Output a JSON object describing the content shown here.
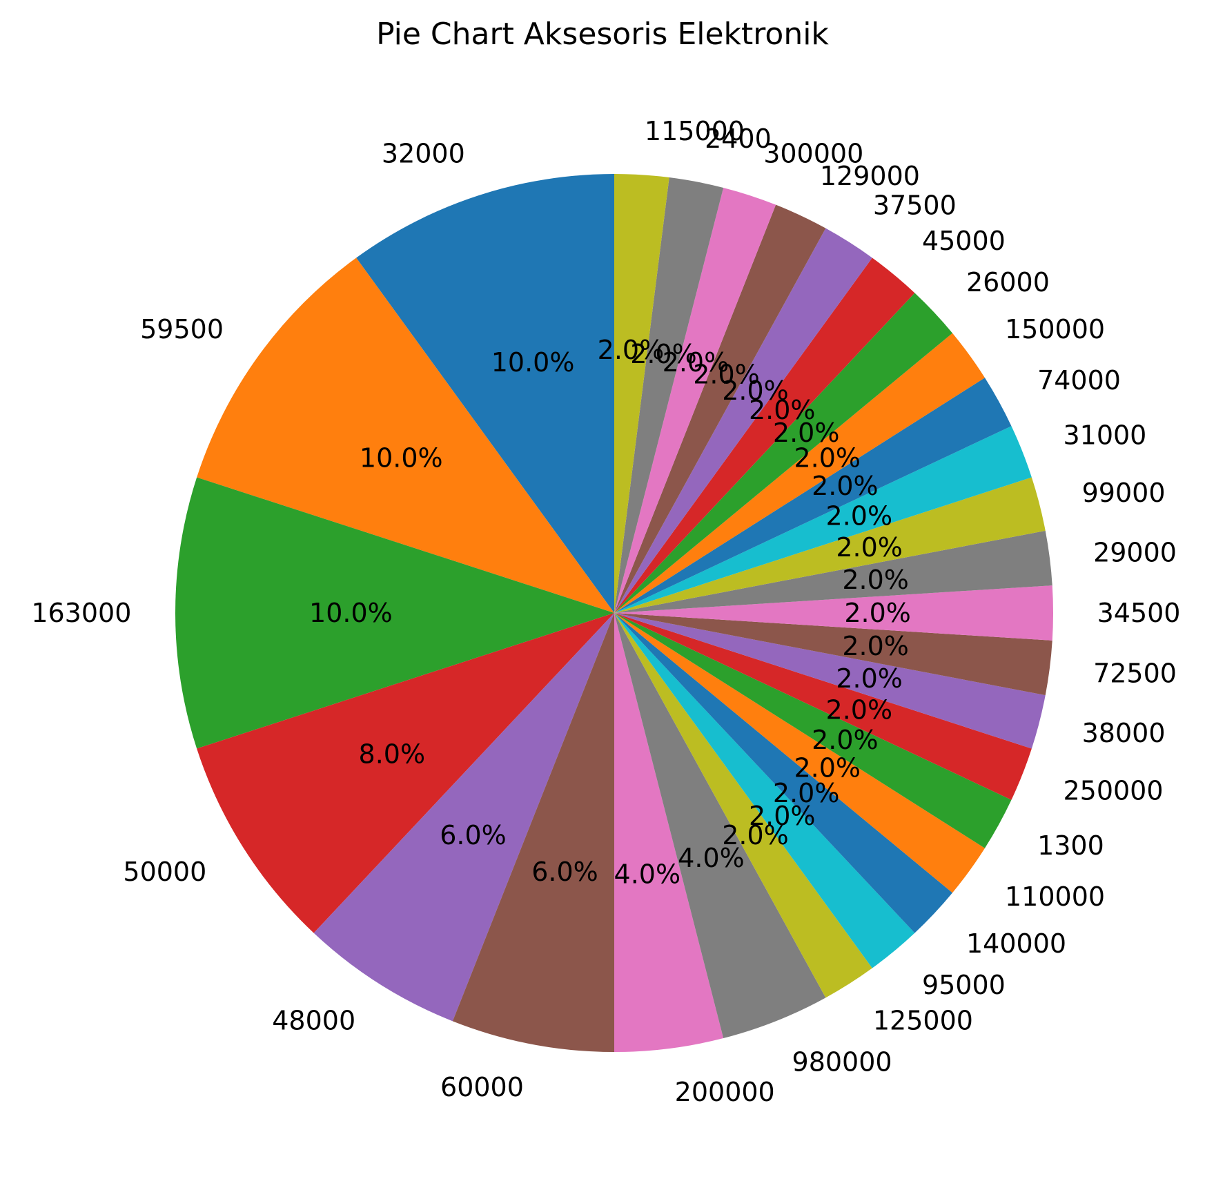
{
  "chart_data": {
    "type": "pie",
    "title": "Pie Chart Aksesoris Elektronik",
    "start_angle_deg": 90,
    "direction": "counterclockwise",
    "slices": [
      {
        "label": "32000",
        "value": 10.0,
        "pct_label": "10.0%",
        "color": "#1f77b4"
      },
      {
        "label": "59500",
        "value": 10.0,
        "pct_label": "10.0%",
        "color": "#ff7f0e"
      },
      {
        "label": "163000",
        "value": 10.0,
        "pct_label": "10.0%",
        "color": "#2ca02c"
      },
      {
        "label": "50000",
        "value": 8.0,
        "pct_label": "8.0%",
        "color": "#d62728"
      },
      {
        "label": "48000",
        "value": 6.0,
        "pct_label": "6.0%",
        "color": "#9467bd"
      },
      {
        "label": "60000",
        "value": 6.0,
        "pct_label": "6.0%",
        "color": "#8c564b"
      },
      {
        "label": "200000",
        "value": 4.0,
        "pct_label": "4.0%",
        "color": "#e377c2"
      },
      {
        "label": "980000",
        "value": 4.0,
        "pct_label": "4.0%",
        "color": "#7f7f7f"
      },
      {
        "label": "125000",
        "value": 2.0,
        "pct_label": "2.0%",
        "color": "#bcbd22"
      },
      {
        "label": "95000",
        "value": 2.0,
        "pct_label": "2.0%",
        "color": "#17becf"
      },
      {
        "label": "140000",
        "value": 2.0,
        "pct_label": "2.0%",
        "color": "#1f77b4"
      },
      {
        "label": "110000",
        "value": 2.0,
        "pct_label": "2.0%",
        "color": "#ff7f0e"
      },
      {
        "label": "1300",
        "value": 2.0,
        "pct_label": "2.0%",
        "color": "#2ca02c"
      },
      {
        "label": "250000",
        "value": 2.0,
        "pct_label": "2.0%",
        "color": "#d62728"
      },
      {
        "label": "38000",
        "value": 2.0,
        "pct_label": "2.0%",
        "color": "#9467bd"
      },
      {
        "label": "72500",
        "value": 2.0,
        "pct_label": "2.0%",
        "color": "#8c564b"
      },
      {
        "label": "34500",
        "value": 2.0,
        "pct_label": "2.0%",
        "color": "#e377c2"
      },
      {
        "label": "29000",
        "value": 2.0,
        "pct_label": "2.0%",
        "color": "#7f7f7f"
      },
      {
        "label": "99000",
        "value": 2.0,
        "pct_label": "2.0%",
        "color": "#bcbd22"
      },
      {
        "label": "31000",
        "value": 2.0,
        "pct_label": "2.0%",
        "color": "#17becf"
      },
      {
        "label": "74000",
        "value": 2.0,
        "pct_label": "2.0%",
        "color": "#1f77b4"
      },
      {
        "label": "150000",
        "value": 2.0,
        "pct_label": "2.0%",
        "color": "#ff7f0e"
      },
      {
        "label": "26000",
        "value": 2.0,
        "pct_label": "2.0%",
        "color": "#2ca02c"
      },
      {
        "label": "45000",
        "value": 2.0,
        "pct_label": "2.0%",
        "color": "#d62728"
      },
      {
        "label": "37500",
        "value": 2.0,
        "pct_label": "2.0%",
        "color": "#9467bd"
      },
      {
        "label": "129000",
        "value": 2.0,
        "pct_label": "2.0%",
        "color": "#8c564b"
      },
      {
        "label": "300000",
        "value": 2.0,
        "pct_label": "2.0%",
        "color": "#e377c2"
      },
      {
        "label": "2400",
        "value": 2.0,
        "pct_label": "2.0%",
        "color": "#7f7f7f"
      },
      {
        "label": "115000",
        "value": 2.0,
        "pct_label": "2.0%",
        "color": "#bcbd22"
      }
    ]
  }
}
